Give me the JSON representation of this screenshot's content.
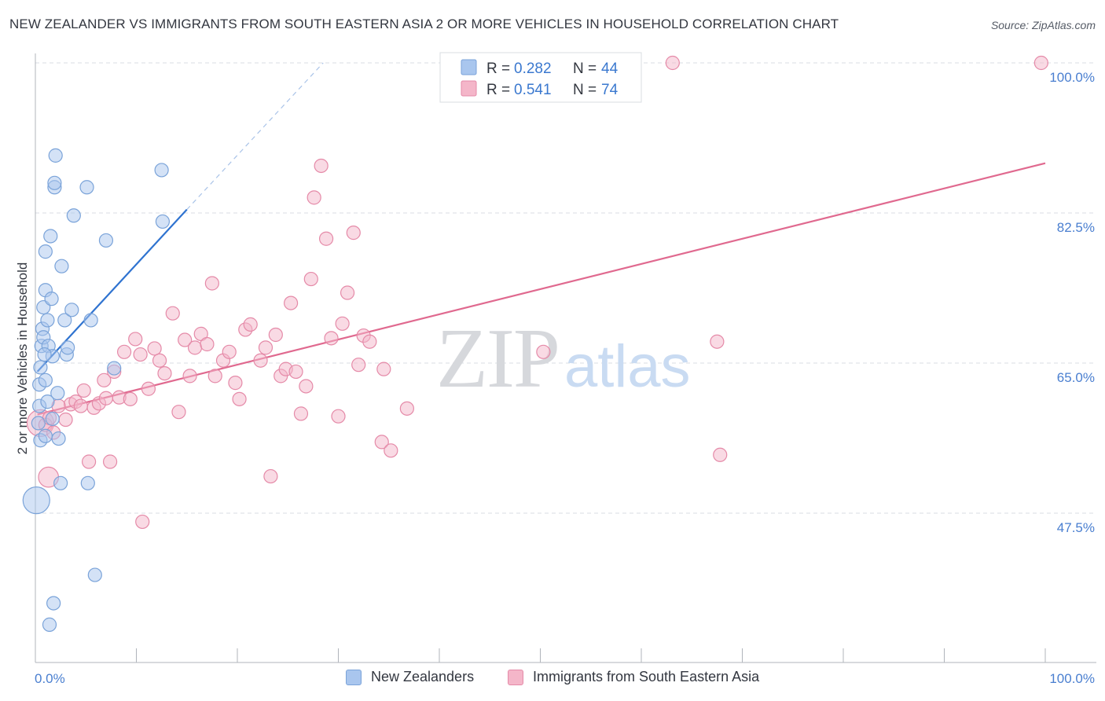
{
  "title": "NEW ZEALANDER VS IMMIGRANTS FROM SOUTH EASTERN ASIA 2 OR MORE VEHICLES IN HOUSEHOLD CORRELATION CHART",
  "source": "Source: ZipAtlas.com",
  "watermark": {
    "part1": "ZIP",
    "part2": "atlas"
  },
  "colors": {
    "blue_fill": "#a9c6ee",
    "blue_stroke": "#7aa3d9",
    "blue_line": "#2f73d0",
    "pink_fill": "#f4b6c9",
    "pink_stroke": "#e58aa8",
    "pink_line": "#e0698f",
    "grid": "#d8dde3",
    "tick_text": "#4a7fd0",
    "axis": "#b0b4bb"
  },
  "legend": {
    "r_label": "R =",
    "n_label": "N =",
    "rows": [
      {
        "series": "New Zealanders",
        "r": "0.282",
        "n": "44"
      },
      {
        "series": "Immigrants from South Eastern Asia",
        "r": "0.541",
        "n": "74"
      }
    ]
  },
  "chart_data": {
    "type": "scatter",
    "title": "NEW ZEALANDER VS IMMIGRANTS FROM SOUTH EASTERN ASIA 2 OR MORE VEHICLES IN HOUSEHOLD CORRELATION CHART",
    "xlabel": "",
    "ylabel": "2 or more Vehicles in Household",
    "xlim": [
      0,
      100
    ],
    "ylim": [
      28,
      102
    ],
    "x_tick_labels": [
      "0.0%",
      "100.0%"
    ],
    "y_tick_labels": [
      "47.5%",
      "65.0%",
      "82.5%",
      "100.0%"
    ],
    "y_tick_values": [
      47.5,
      65.0,
      82.5,
      100.0
    ],
    "grid": true,
    "legend_position": "bottom",
    "series": [
      {
        "name": "New Zealanders",
        "color": "#a9c6ee",
        "trend": {
          "x": [
            0.2,
            15
          ],
          "y": [
            64.0,
            82.9
          ],
          "dashed_to": [
            28.5,
            100.0
          ]
        },
        "points": [
          {
            "x": 0.1,
            "y": 49.0,
            "s": 2
          },
          {
            "x": 0.3,
            "y": 58.0
          },
          {
            "x": 0.4,
            "y": 62.5
          },
          {
            "x": 0.5,
            "y": 64.5
          },
          {
            "x": 0.5,
            "y": 56.0
          },
          {
            "x": 0.6,
            "y": 67.0
          },
          {
            "x": 0.7,
            "y": 69.0
          },
          {
            "x": 0.8,
            "y": 71.5
          },
          {
            "x": 0.8,
            "y": 68.0
          },
          {
            "x": 1.0,
            "y": 63.0
          },
          {
            "x": 1.0,
            "y": 56.5
          },
          {
            "x": 1.0,
            "y": 78.0
          },
          {
            "x": 1.0,
            "y": 73.5
          },
          {
            "x": 1.2,
            "y": 70.0
          },
          {
            "x": 1.3,
            "y": 67.0
          },
          {
            "x": 1.4,
            "y": 34.5
          },
          {
            "x": 1.5,
            "y": 79.8
          },
          {
            "x": 1.6,
            "y": 72.5
          },
          {
            "x": 1.7,
            "y": 65.8
          },
          {
            "x": 1.7,
            "y": 58.5
          },
          {
            "x": 1.8,
            "y": 37.0
          },
          {
            "x": 1.9,
            "y": 85.5
          },
          {
            "x": 1.9,
            "y": 86.0
          },
          {
            "x": 2.0,
            "y": 89.2
          },
          {
            "x": 2.3,
            "y": 56.2
          },
          {
            "x": 2.5,
            "y": 51.0
          },
          {
            "x": 2.6,
            "y": 76.3
          },
          {
            "x": 2.9,
            "y": 70.0
          },
          {
            "x": 3.1,
            "y": 66.0
          },
          {
            "x": 3.2,
            "y": 66.8
          },
          {
            "x": 3.6,
            "y": 71.2
          },
          {
            "x": 3.8,
            "y": 82.2
          },
          {
            "x": 5.1,
            "y": 85.5
          },
          {
            "x": 5.2,
            "y": 51.0
          },
          {
            "x": 5.5,
            "y": 70.0
          },
          {
            "x": 5.9,
            "y": 40.3
          },
          {
            "x": 7.0,
            "y": 79.3
          },
          {
            "x": 7.8,
            "y": 64.4
          },
          {
            "x": 12.5,
            "y": 87.5
          },
          {
            "x": 12.6,
            "y": 81.5
          },
          {
            "x": 0.4,
            "y": 60.0
          },
          {
            "x": 0.9,
            "y": 66.0
          },
          {
            "x": 1.2,
            "y": 60.5
          },
          {
            "x": 2.2,
            "y": 61.5
          }
        ]
      },
      {
        "name": "Immigrants from South Eastern Asia",
        "color": "#f4b6c9",
        "trend": {
          "x": [
            0.2,
            100
          ],
          "y": [
            59.0,
            88.3
          ]
        },
        "points": [
          {
            "x": 0.5,
            "y": 58.0,
            "s": 2
          },
          {
            "x": 1.3,
            "y": 51.7,
            "s": 1.5
          },
          {
            "x": 1.0,
            "y": 57.8
          },
          {
            "x": 1.4,
            "y": 58.6
          },
          {
            "x": 1.8,
            "y": 56.9
          },
          {
            "x": 3.0,
            "y": 58.4
          },
          {
            "x": 3.5,
            "y": 60.2
          },
          {
            "x": 4.0,
            "y": 60.5
          },
          {
            "x": 4.5,
            "y": 60.0
          },
          {
            "x": 4.8,
            "y": 61.8
          },
          {
            "x": 5.3,
            "y": 53.5
          },
          {
            "x": 5.8,
            "y": 59.8
          },
          {
            "x": 6.3,
            "y": 60.3
          },
          {
            "x": 6.8,
            "y": 63.0
          },
          {
            "x": 7.4,
            "y": 53.5
          },
          {
            "x": 7.8,
            "y": 64.0
          },
          {
            "x": 8.3,
            "y": 61.0
          },
          {
            "x": 8.8,
            "y": 66.3
          },
          {
            "x": 9.4,
            "y": 60.8
          },
          {
            "x": 9.9,
            "y": 67.8
          },
          {
            "x": 10.4,
            "y": 66.0
          },
          {
            "x": 10.6,
            "y": 46.5
          },
          {
            "x": 11.2,
            "y": 62.0
          },
          {
            "x": 11.8,
            "y": 66.7
          },
          {
            "x": 12.3,
            "y": 65.3
          },
          {
            "x": 12.8,
            "y": 63.8
          },
          {
            "x": 13.6,
            "y": 70.8
          },
          {
            "x": 14.2,
            "y": 59.3
          },
          {
            "x": 14.8,
            "y": 67.7
          },
          {
            "x": 15.3,
            "y": 63.5
          },
          {
            "x": 15.8,
            "y": 66.8
          },
          {
            "x": 16.4,
            "y": 68.4
          },
          {
            "x": 17.0,
            "y": 67.2
          },
          {
            "x": 17.5,
            "y": 74.3
          },
          {
            "x": 17.8,
            "y": 63.5
          },
          {
            "x": 18.6,
            "y": 65.3
          },
          {
            "x": 19.2,
            "y": 66.3
          },
          {
            "x": 19.8,
            "y": 62.7
          },
          {
            "x": 20.2,
            "y": 60.8
          },
          {
            "x": 20.8,
            "y": 68.9
          },
          {
            "x": 21.3,
            "y": 69.5
          },
          {
            "x": 22.3,
            "y": 65.3
          },
          {
            "x": 22.8,
            "y": 66.8
          },
          {
            "x": 23.3,
            "y": 51.8
          },
          {
            "x": 23.8,
            "y": 68.3
          },
          {
            "x": 24.3,
            "y": 63.5
          },
          {
            "x": 24.8,
            "y": 64.3
          },
          {
            "x": 25.3,
            "y": 72.0
          },
          {
            "x": 25.8,
            "y": 64.0
          },
          {
            "x": 26.3,
            "y": 59.1
          },
          {
            "x": 26.8,
            "y": 62.3
          },
          {
            "x": 27.3,
            "y": 74.8
          },
          {
            "x": 27.6,
            "y": 84.3
          },
          {
            "x": 28.3,
            "y": 88.0
          },
          {
            "x": 28.8,
            "y": 79.5
          },
          {
            "x": 29.3,
            "y": 67.9
          },
          {
            "x": 30.0,
            "y": 58.8
          },
          {
            "x": 30.4,
            "y": 69.6
          },
          {
            "x": 30.9,
            "y": 73.2
          },
          {
            "x": 31.5,
            "y": 80.2
          },
          {
            "x": 32.0,
            "y": 64.8
          },
          {
            "x": 32.5,
            "y": 68.2
          },
          {
            "x": 33.1,
            "y": 67.5
          },
          {
            "x": 34.3,
            "y": 55.8
          },
          {
            "x": 34.5,
            "y": 64.3
          },
          {
            "x": 35.2,
            "y": 54.8
          },
          {
            "x": 36.8,
            "y": 59.7
          },
          {
            "x": 50.3,
            "y": 66.3
          },
          {
            "x": 63.1,
            "y": 100.0
          },
          {
            "x": 67.5,
            "y": 67.5
          },
          {
            "x": 67.8,
            "y": 54.3
          },
          {
            "x": 99.6,
            "y": 100.0
          },
          {
            "x": 7.0,
            "y": 60.9
          },
          {
            "x": 2.3,
            "y": 60.0
          }
        ]
      }
    ]
  }
}
